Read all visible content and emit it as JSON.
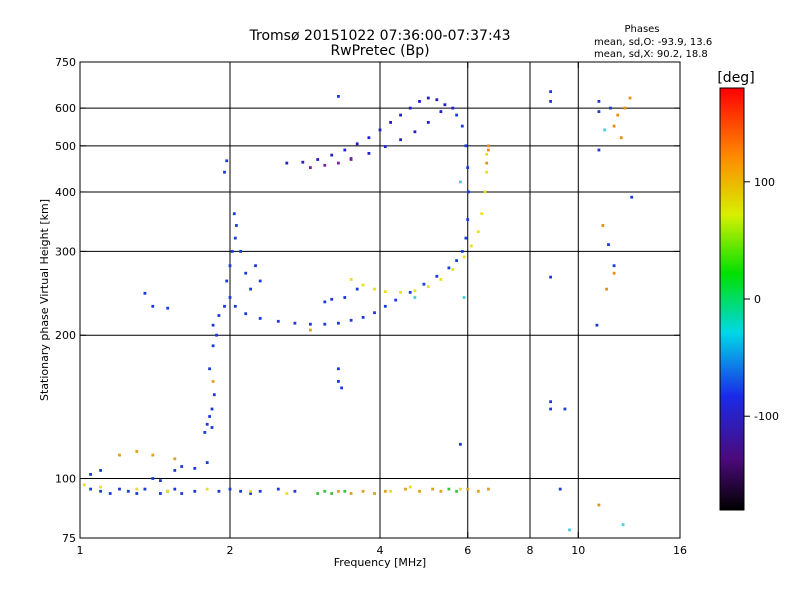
{
  "chart_data": {
    "type": "scatter",
    "title": "Tromsø 20151022 07:36:00-07:37:43",
    "subtitle": "RwPretec (Bp)",
    "phases": {
      "heading": "Phases",
      "line_o": "mean, sd,O: -93.9, 13.6",
      "line_x": "mean, sd,X:  90.2, 18.8"
    },
    "xlabel": "Frequency [MHz]",
    "ylabel": "Stationary phase Virtual Height [km]",
    "x_scale": "log",
    "y_scale": "log",
    "xlim": [
      1,
      16
    ],
    "ylim": [
      75,
      750
    ],
    "x_ticks": [
      1,
      2,
      4,
      6,
      8,
      10,
      16
    ],
    "x_tick_labels": [
      "1",
      "2",
      "4",
      "6",
      "8",
      "10",
      "16"
    ],
    "y_ticks": [
      75,
      100,
      200,
      300,
      400,
      500,
      600,
      750
    ],
    "y_tick_labels": [
      "75",
      "100",
      "200",
      "300",
      "400",
      "500",
      "600",
      "750"
    ],
    "grid_x": [
      2,
      4,
      6,
      8,
      10
    ],
    "grid_y": [
      100,
      200,
      300,
      400,
      500,
      600
    ],
    "colorbar": {
      "label": "[deg]",
      "range": [
        -180,
        180
      ],
      "ticks": [
        100,
        0,
        -100
      ],
      "tick_labels": [
        "100",
        "0",
        "-100"
      ]
    },
    "series": [
      {
        "color": "#1a3adc",
        "points": [
          [
            2.0,
            240
          ],
          [
            2.05,
            230
          ],
          [
            2.15,
            222
          ],
          [
            2.3,
            217
          ],
          [
            2.5,
            214
          ],
          [
            2.7,
            212
          ],
          [
            2.9,
            211
          ],
          [
            3.1,
            211
          ],
          [
            3.3,
            212
          ],
          [
            3.5,
            215
          ],
          [
            3.7,
            218
          ],
          [
            3.9,
            223
          ],
          [
            4.1,
            230
          ],
          [
            4.3,
            237
          ],
          [
            4.6,
            246
          ],
          [
            4.9,
            256
          ],
          [
            5.2,
            266
          ],
          [
            5.5,
            277
          ],
          [
            5.7,
            287
          ],
          [
            5.85,
            300
          ],
          [
            5.95,
            320
          ],
          [
            6.0,
            350
          ],
          [
            6.02,
            400
          ],
          [
            6.0,
            450
          ],
          [
            5.95,
            500
          ],
          [
            5.85,
            550
          ],
          [
            5.7,
            580
          ]
        ]
      },
      {
        "color": "#1a3adc",
        "points": [
          [
            1.95,
            230
          ],
          [
            1.97,
            260
          ],
          [
            2.0,
            280
          ],
          [
            2.02,
            300
          ],
          [
            2.05,
            320
          ],
          [
            2.1,
            300
          ],
          [
            2.15,
            270
          ],
          [
            2.2,
            250
          ],
          [
            2.25,
            280
          ],
          [
            2.3,
            260
          ],
          [
            2.06,
            340
          ],
          [
            2.04,
            360
          ]
        ]
      },
      {
        "color": "#2020c8",
        "points": [
          [
            2.6,
            460
          ],
          [
            2.8,
            462
          ],
          [
            3.0,
            468
          ],
          [
            3.2,
            478
          ],
          [
            3.4,
            490
          ],
          [
            3.6,
            505
          ],
          [
            3.8,
            520
          ],
          [
            4.0,
            540
          ],
          [
            4.2,
            560
          ],
          [
            4.4,
            580
          ],
          [
            4.6,
            600
          ],
          [
            4.8,
            620
          ],
          [
            5.0,
            630
          ],
          [
            5.2,
            625
          ],
          [
            5.4,
            610
          ],
          [
            5.6,
            600
          ],
          [
            3.5,
            470
          ],
          [
            3.8,
            482
          ],
          [
            4.1,
            498
          ],
          [
            4.4,
            515
          ],
          [
            4.7,
            535
          ],
          [
            5.0,
            560
          ],
          [
            5.3,
            590
          ]
        ]
      },
      {
        "color": "#8020a0",
        "points": [
          [
            2.9,
            450
          ],
          [
            3.1,
            455
          ],
          [
            3.3,
            460
          ],
          [
            3.5,
            468
          ]
        ]
      },
      {
        "color": "#e8e020",
        "points": [
          [
            3.5,
            262
          ],
          [
            3.7,
            255
          ],
          [
            3.9,
            250
          ],
          [
            4.1,
            247
          ],
          [
            4.4,
            246
          ],
          [
            4.7,
            248
          ],
          [
            5.0,
            253
          ],
          [
            5.3,
            262
          ],
          [
            5.6,
            275
          ],
          [
            5.9,
            292
          ],
          [
            6.1,
            308
          ],
          [
            6.3,
            330
          ],
          [
            6.4,
            360
          ],
          [
            6.5,
            400
          ],
          [
            6.55,
            440
          ],
          [
            6.55,
            480
          ]
        ]
      },
      {
        "color": "#e89010",
        "points": [
          [
            6.6,
            500
          ],
          [
            6.55,
            460
          ],
          [
            6.6,
            490
          ]
        ]
      },
      {
        "color": "#1a3adc",
        "points": [
          [
            1.8,
            130
          ],
          [
            1.82,
            135
          ],
          [
            1.84,
            140
          ],
          [
            1.86,
            150
          ],
          [
            1.84,
            128
          ],
          [
            1.78,
            125
          ],
          [
            1.82,
            170
          ],
          [
            1.85,
            190
          ],
          [
            1.88,
            200
          ],
          [
            1.85,
            210
          ],
          [
            1.9,
            220
          ],
          [
            1.95,
            440
          ],
          [
            1.97,
            465
          ]
        ]
      },
      {
        "color": "#1a3adc",
        "points": [
          [
            1.05,
            95
          ],
          [
            1.1,
            94
          ],
          [
            1.15,
            93
          ],
          [
            1.2,
            95
          ],
          [
            1.25,
            94
          ],
          [
            1.3,
            93
          ],
          [
            1.35,
            95
          ],
          [
            1.45,
            93
          ],
          [
            1.5,
            94
          ],
          [
            1.55,
            95
          ],
          [
            1.6,
            93
          ],
          [
            1.7,
            94
          ],
          [
            1.9,
            94
          ],
          [
            2.0,
            95
          ],
          [
            2.1,
            94
          ],
          [
            2.2,
            93
          ],
          [
            2.3,
            94
          ],
          [
            2.5,
            95
          ],
          [
            2.7,
            94
          ],
          [
            1.05,
            102
          ],
          [
            1.1,
            104
          ],
          [
            1.4,
            100
          ],
          [
            1.45,
            99
          ],
          [
            1.55,
            104
          ],
          [
            1.6,
            106
          ],
          [
            1.7,
            105
          ],
          [
            1.8,
            108
          ]
        ]
      },
      {
        "color": "#40c040",
        "points": [
          [
            3.0,
            93
          ],
          [
            3.1,
            94
          ],
          [
            3.2,
            93
          ],
          [
            3.4,
            94
          ],
          [
            5.5,
            95
          ],
          [
            5.7,
            94
          ]
        ]
      },
      {
        "color": "#e0a020",
        "points": [
          [
            3.3,
            94
          ],
          [
            3.5,
            93
          ],
          [
            3.7,
            94
          ],
          [
            3.9,
            93
          ],
          [
            4.1,
            94
          ],
          [
            4.5,
            95
          ],
          [
            4.8,
            94
          ],
          [
            5.1,
            95
          ],
          [
            5.3,
            94
          ],
          [
            6.0,
            95
          ],
          [
            6.3,
            94
          ],
          [
            6.6,
            95
          ],
          [
            1.2,
            112
          ],
          [
            1.3,
            114
          ],
          [
            1.4,
            112
          ],
          [
            1.55,
            110
          ],
          [
            1.85,
            160
          ],
          [
            2.9,
            205
          ]
        ]
      },
      {
        "color": "#e8e020",
        "points": [
          [
            1.02,
            97
          ],
          [
            1.1,
            96
          ],
          [
            1.3,
            95
          ],
          [
            1.5,
            94
          ],
          [
            1.8,
            95
          ],
          [
            2.2,
            94
          ],
          [
            2.6,
            93
          ],
          [
            4.2,
            94
          ],
          [
            4.6,
            96
          ],
          [
            5.8,
            95
          ]
        ]
      },
      {
        "color": "#1a3adc",
        "points": [
          [
            3.3,
            160
          ],
          [
            3.35,
            155
          ],
          [
            3.3,
            170
          ],
          [
            3.3,
            635
          ],
          [
            3.1,
            235
          ],
          [
            3.2,
            238
          ],
          [
            3.4,
            240
          ],
          [
            3.6,
            250
          ],
          [
            1.4,
            230
          ],
          [
            1.5,
            228
          ],
          [
            1.35,
            245
          ],
          [
            5.8,
            118
          ],
          [
            8.8,
            650
          ],
          [
            8.8,
            620
          ],
          [
            8.8,
            265
          ],
          [
            8.8,
            145
          ],
          [
            8.8,
            140
          ],
          [
            9.4,
            140
          ],
          [
            9.2,
            95
          ],
          [
            11.0,
            590
          ],
          [
            11.0,
            490
          ],
          [
            11.5,
            310
          ],
          [
            11.8,
            280
          ],
          [
            10.9,
            210
          ],
          [
            11.0,
            620
          ],
          [
            11.6,
            600
          ],
          [
            12.8,
            390
          ]
        ]
      },
      {
        "color": "#e89010",
        "points": [
          [
            11.0,
            88
          ],
          [
            11.8,
            550
          ],
          [
            12.0,
            580
          ],
          [
            12.2,
            520
          ],
          [
            12.4,
            600
          ],
          [
            12.7,
            630
          ],
          [
            11.2,
            340
          ],
          [
            11.4,
            250
          ],
          [
            11.8,
            270
          ]
        ]
      },
      {
        "color": "#40d0e0",
        "points": [
          [
            11.3,
            540
          ],
          [
            5.8,
            420
          ],
          [
            5.9,
            240
          ],
          [
            9.6,
            78
          ],
          [
            12.3,
            80
          ],
          [
            4.7,
            240
          ]
        ]
      }
    ]
  }
}
